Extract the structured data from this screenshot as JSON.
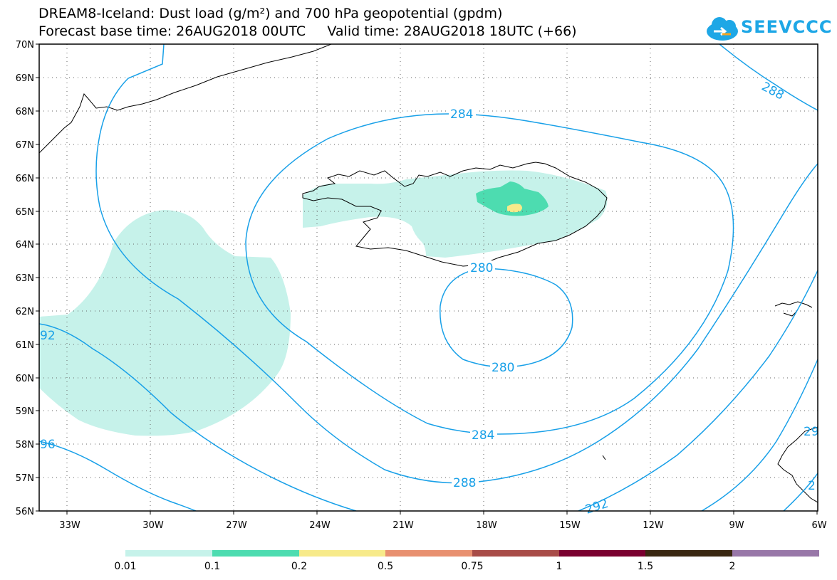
{
  "title_line1": "DREAM8-Iceland: Dust load (g/m²) and 700 hPa geopotential (gpdm)",
  "title_line2": "Forecast base time: 26AUG2018 00UTC     Valid time: 28AUG2018 18UTC (+66)",
  "logo_text": "SEEVCCC",
  "lat_labels": [
    "70N",
    "69N",
    "68N",
    "67N",
    "66N",
    "65N",
    "64N",
    "63N",
    "62N",
    "61N",
    "60N",
    "59N",
    "58N",
    "57N",
    "56N"
  ],
  "lon_labels": [
    "33W",
    "30W",
    "27W",
    "24W",
    "21W",
    "18W",
    "15W",
    "12W",
    "9W",
    "6W"
  ],
  "contour_labels": {
    "c280_top": "280",
    "c280_bottom": "280",
    "c284_top": "284",
    "c284_bottom": "284",
    "c288_top": "288",
    "c288_bottom": "288",
    "c292_bottom": "292",
    "c292_left": "92",
    "c296_left": "96",
    "c29_right": "29",
    "c2_right": "2"
  },
  "colorbar": {
    "labels": [
      "0.01",
      "0.1",
      "0.2",
      "0.5",
      "0.75",
      "1",
      "1.5",
      "2"
    ],
    "colors": [
      "#c6f2ea",
      "#4ddcb0",
      "#f7ea8a",
      "#e89070",
      "#a84c48",
      "#7a0030",
      "#3a2812",
      "#9877a8"
    ]
  },
  "colors": {
    "contour": "#18a0e8",
    "dust_light": "#c6f2ea",
    "dust_mid": "#4ddcb0",
    "dust_high": "#f7ea8a",
    "coast": "#000000"
  }
}
